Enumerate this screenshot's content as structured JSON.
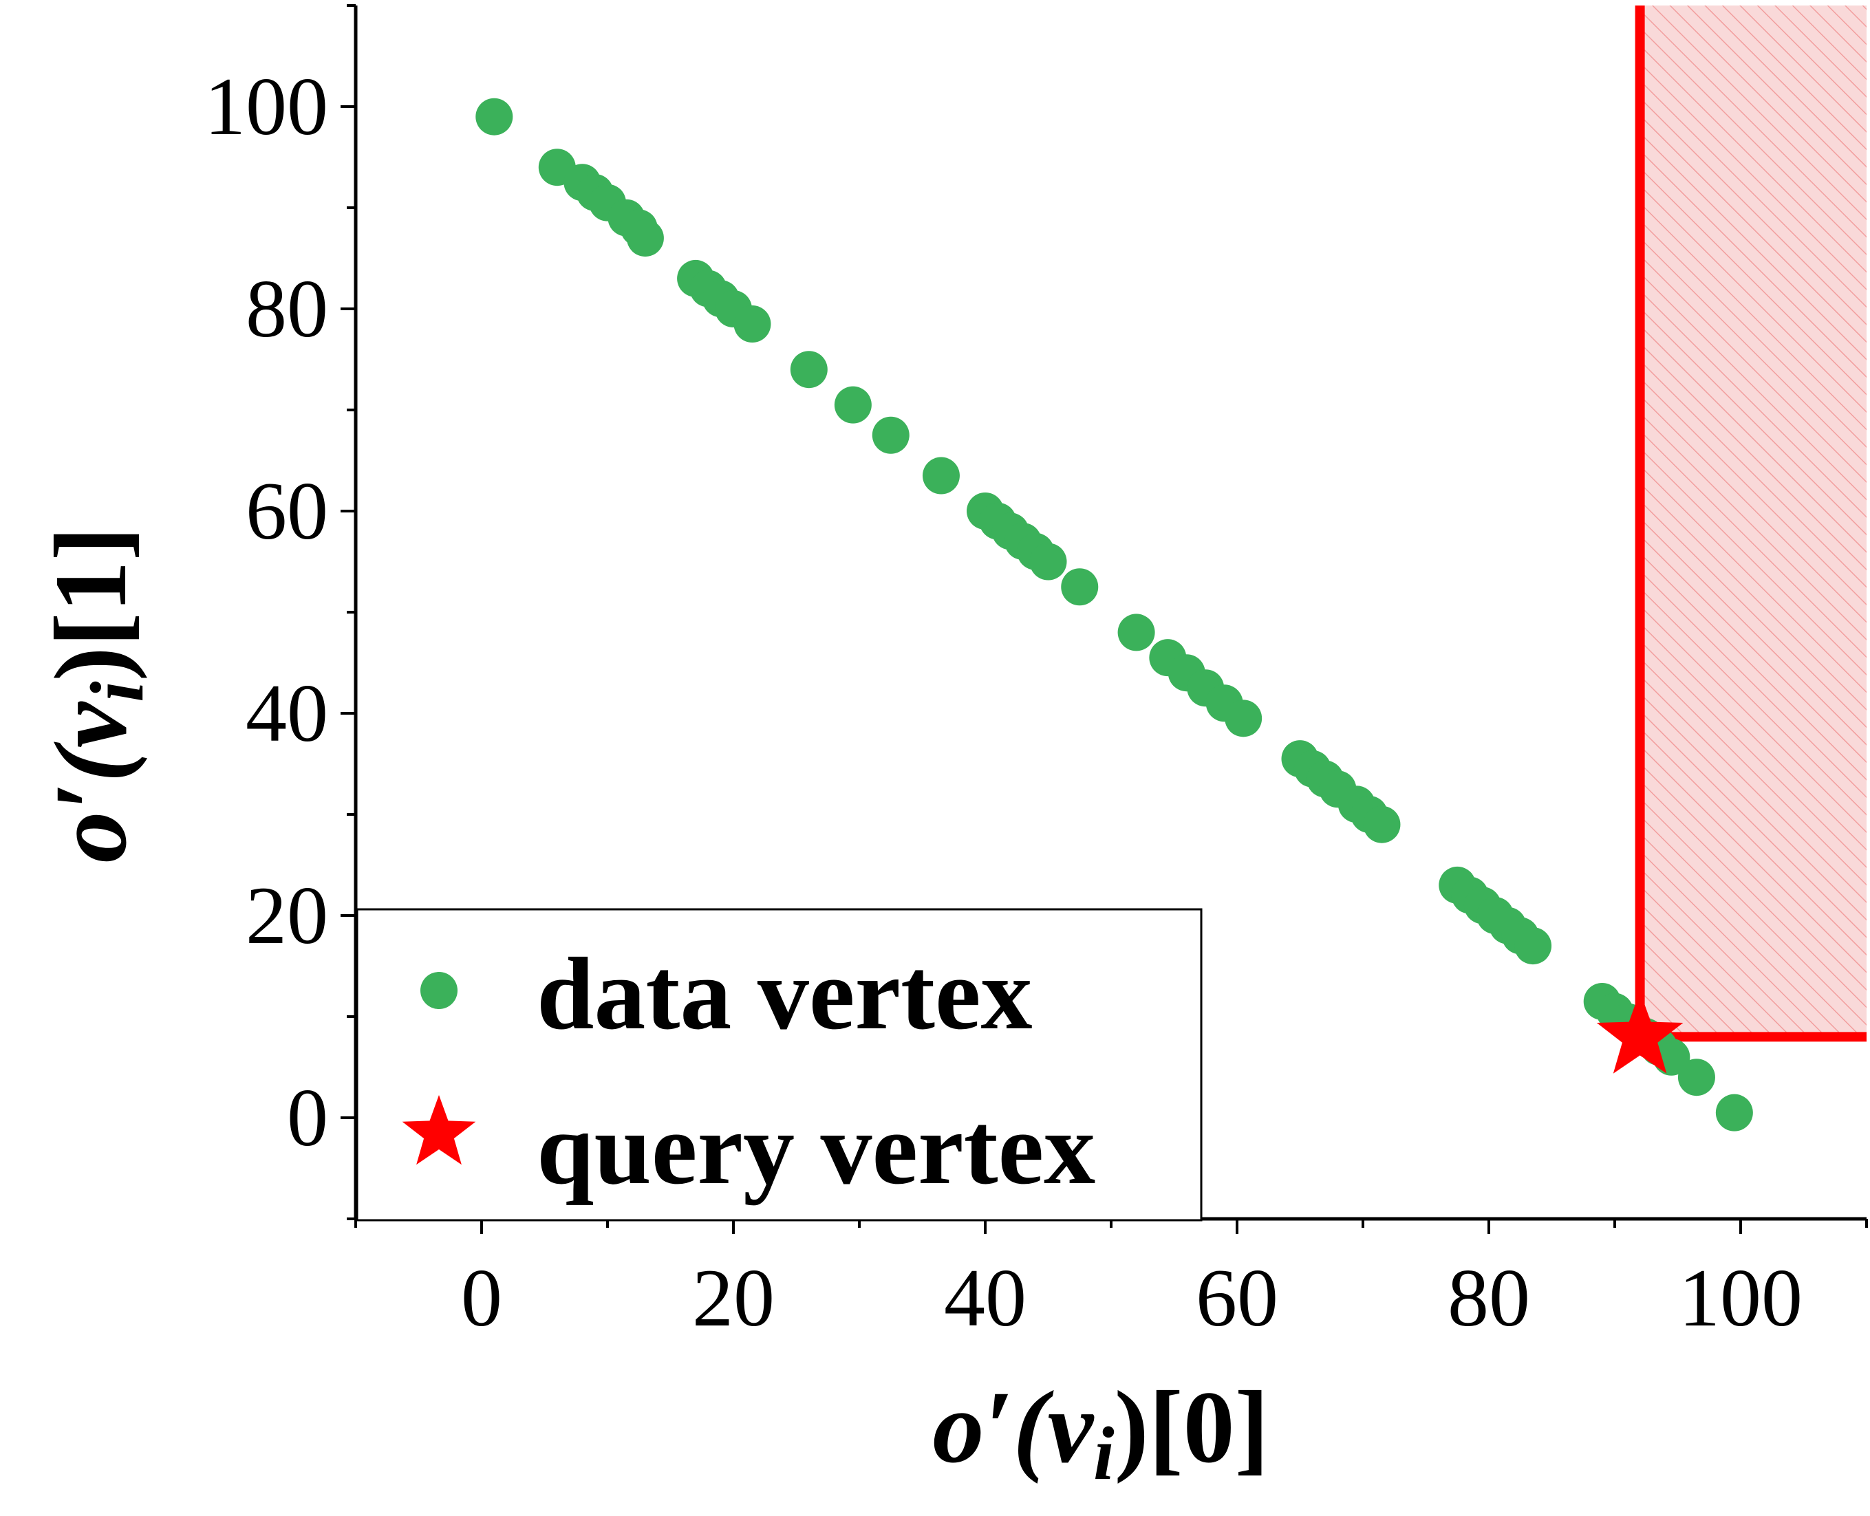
{
  "colors": {
    "data_vertex": "#3BB15A",
    "query_vertex": "#FF0000",
    "region_fill": "#F9D9D9",
    "axis": "#000000"
  },
  "chart_data": {
    "type": "scatter",
    "xlabel": {
      "prefix": "o′(v",
      "sub": "i",
      "suffix": ")[0]"
    },
    "ylabel": {
      "prefix": "o′(v",
      "sub": "i",
      "suffix": ")[1]"
    },
    "xlim": [
      -10,
      110
    ],
    "ylim": [
      -10,
      110
    ],
    "xticks": [
      0,
      20,
      40,
      60,
      80,
      100
    ],
    "yticks": [
      0,
      20,
      40,
      60,
      80,
      100
    ],
    "xtick_labels": [
      "0",
      "20",
      "40",
      "60",
      "80",
      "100"
    ],
    "ytick_labels": [
      "0",
      "20",
      "40",
      "60",
      "80",
      "100"
    ],
    "grid": false,
    "legend": {
      "placement": "bottom-left",
      "entries": [
        {
          "label": "data vertex",
          "marker": "circle"
        },
        {
          "label": "query vertex",
          "marker": "star"
        }
      ]
    },
    "series": [
      {
        "name": "data vertex",
        "marker": "circle",
        "points": [
          [
            1,
            99
          ],
          [
            6,
            94
          ],
          [
            8,
            92.5
          ],
          [
            9,
            91.5
          ],
          [
            10,
            90.5
          ],
          [
            11.5,
            89
          ],
          [
            12.5,
            88
          ],
          [
            13,
            87
          ],
          [
            17,
            83
          ],
          [
            18,
            82
          ],
          [
            19,
            81
          ],
          [
            20,
            80
          ],
          [
            21.5,
            78.5
          ],
          [
            26,
            74
          ],
          [
            29.5,
            70.5
          ],
          [
            32.5,
            67.5
          ],
          [
            36.5,
            63.5
          ],
          [
            40,
            60
          ],
          [
            41,
            59
          ],
          [
            42,
            58
          ],
          [
            43,
            57
          ],
          [
            44,
            56
          ],
          [
            45,
            55
          ],
          [
            47.5,
            52.5
          ],
          [
            52,
            48
          ],
          [
            54.5,
            45.5
          ],
          [
            56,
            44
          ],
          [
            57.5,
            42.5
          ],
          [
            59,
            41
          ],
          [
            60.5,
            39.5
          ],
          [
            65,
            35.5
          ],
          [
            66,
            34.5
          ],
          [
            67,
            33.5
          ],
          [
            68,
            32.5
          ],
          [
            69.5,
            31
          ],
          [
            70.5,
            30
          ],
          [
            71.5,
            29
          ],
          [
            77.5,
            23
          ],
          [
            78.5,
            22
          ],
          [
            79.5,
            21
          ],
          [
            80.5,
            20
          ],
          [
            81.5,
            19
          ],
          [
            82.5,
            18
          ],
          [
            83.5,
            17
          ],
          [
            89,
            11.5
          ],
          [
            90,
            10.5
          ],
          [
            91,
            9.5
          ],
          [
            92.5,
            8
          ],
          [
            93.5,
            7
          ],
          [
            94.5,
            6
          ],
          [
            96.5,
            4
          ],
          [
            99.5,
            0.5
          ]
        ]
      },
      {
        "name": "query vertex",
        "marker": "star",
        "points": [
          [
            92,
            8
          ]
        ]
      }
    ],
    "dominance_region": {
      "x_from": 92,
      "y_from": 8
    }
  }
}
